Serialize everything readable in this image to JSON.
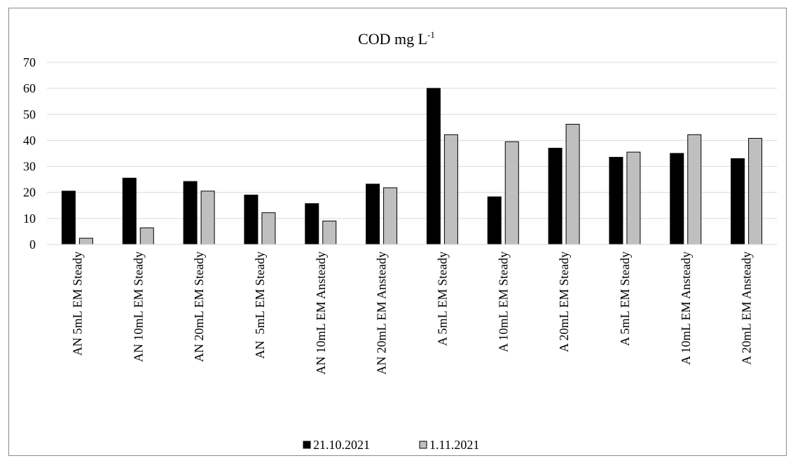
{
  "chart_data": {
    "type": "bar",
    "title": "COD mg L",
    "title_superscript": "-1",
    "xlabel": "",
    "ylabel": "",
    "ylim": [
      0,
      70
    ],
    "yticks": [
      0,
      10,
      20,
      30,
      40,
      50,
      60,
      70
    ],
    "grid": true,
    "legend_position": "bottom",
    "categories": [
      "AN 5mL EM Steady",
      "AN 10mL EM Steady",
      "AN 20mL EM Steady",
      "AN  5mL EM Steady",
      "AN 10mL EM Ansteady",
      "AN 20mL EM Ansteady",
      "A 5mL EM Steady",
      "A 10mL EM Steady",
      "A 20mL EM Steady",
      "A 5mL EM Steady",
      "A 10mL EM Ansteady",
      "A 20mL EM Ansteady"
    ],
    "series": [
      {
        "name": "21.10.2021",
        "color": "#000000",
        "values": [
          20.5,
          25.5,
          24.2,
          19.0,
          15.7,
          23.2,
          60.0,
          18.3,
          37.0,
          33.5,
          35.0,
          33.0
        ]
      },
      {
        "name": "1.11.2021",
        "color": "#bfbfbf",
        "values": [
          2.4,
          6.4,
          20.5,
          12.2,
          9.0,
          21.8,
          42.2,
          39.5,
          46.2,
          35.5,
          42.2,
          40.8
        ]
      }
    ]
  }
}
